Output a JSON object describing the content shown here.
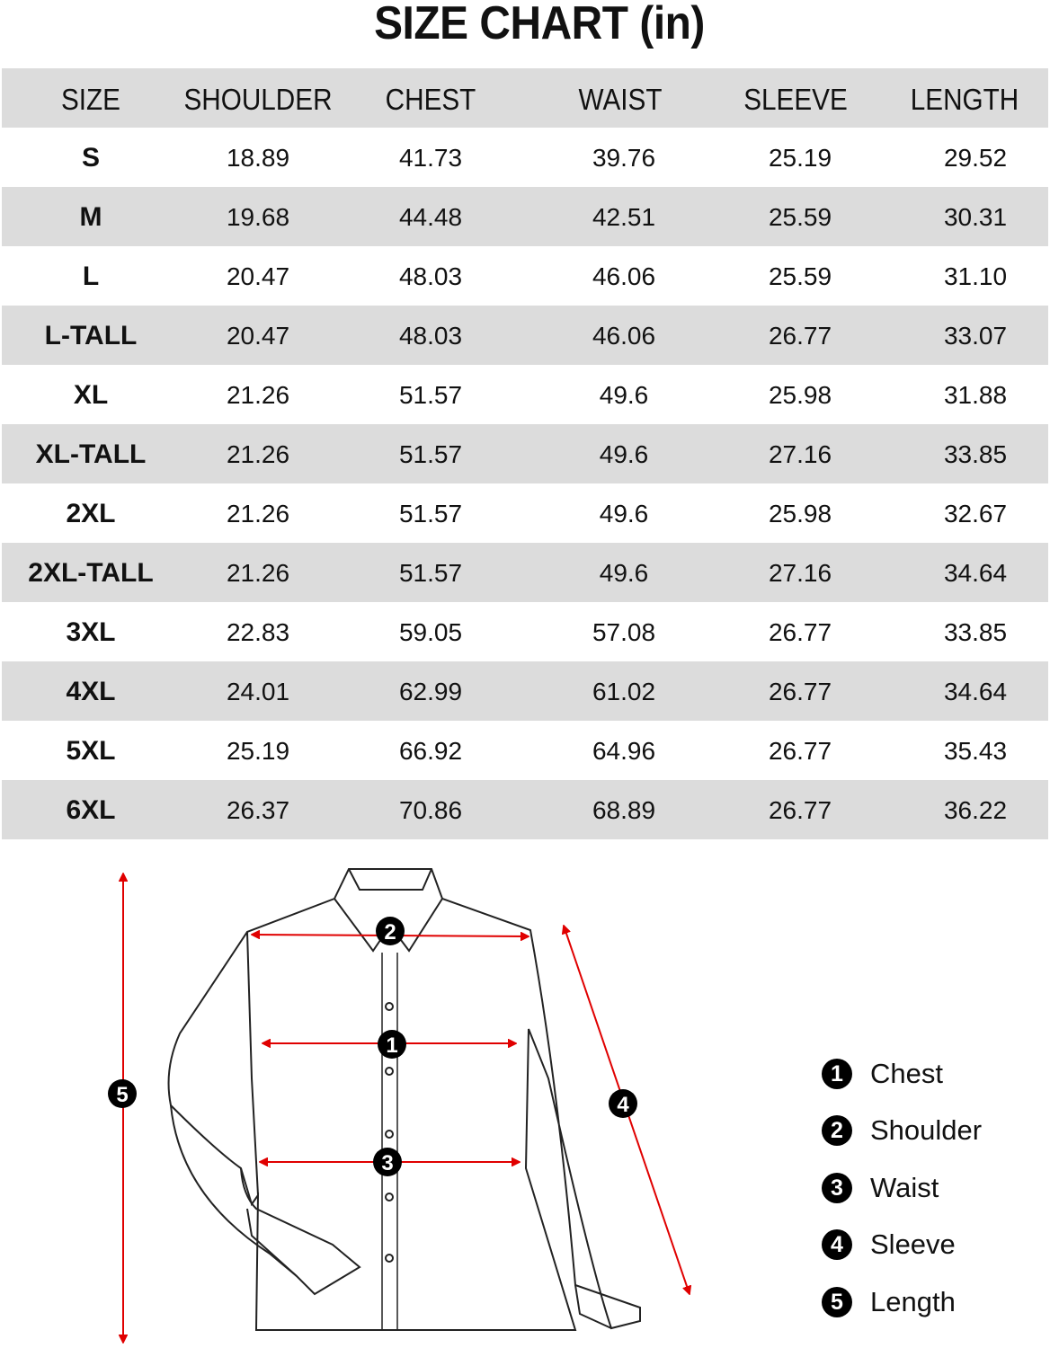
{
  "title": "SIZE CHART (in)",
  "columns": [
    "SIZE",
    "SHOULDER",
    "CHEST",
    "WAIST",
    "SLEEVE",
    "LENGTH"
  ],
  "rows": [
    [
      "S",
      "18.89",
      "41.73",
      "39.76",
      "25.19",
      "29.52"
    ],
    [
      "M",
      "19.68",
      "44.48",
      "42.51",
      "25.59",
      "30.31"
    ],
    [
      "L",
      "20.47",
      "48.03",
      "46.06",
      "25.59",
      "31.10"
    ],
    [
      "L-TALL",
      "20.47",
      "48.03",
      "46.06",
      "26.77",
      "33.07"
    ],
    [
      "XL",
      "21.26",
      "51.57",
      "49.6",
      "25.98",
      "31.88"
    ],
    [
      "XL-TALL",
      "21.26",
      "51.57",
      "49.6",
      "27.16",
      "33.85"
    ],
    [
      "2XL",
      "21.26",
      "51.57",
      "49.6",
      "25.98",
      "32.67"
    ],
    [
      "2XL-TALL",
      "21.26",
      "51.57",
      "49.6",
      "27.16",
      "34.64"
    ],
    [
      "3XL",
      "22.83",
      "59.05",
      "57.08",
      "26.77",
      "33.85"
    ],
    [
      "4XL",
      "24.01",
      "62.99",
      "61.02",
      "26.77",
      "34.64"
    ],
    [
      "5XL",
      "25.19",
      "66.92",
      "64.96",
      "26.77",
      "35.43"
    ],
    [
      "6XL",
      "26.37",
      "70.86",
      "68.89",
      "26.77",
      "36.22"
    ]
  ],
  "legend": [
    {
      "num": "1",
      "label": "Chest"
    },
    {
      "num": "2",
      "label": "Shoulder"
    },
    {
      "num": "3",
      "label": "Waist"
    },
    {
      "num": "4",
      "label": "Sleeve"
    },
    {
      "num": "5",
      "label": "Length"
    }
  ],
  "colors": {
    "row_shade": "#dcdcdc",
    "arrow": "#e00000",
    "marker": "#000000"
  }
}
